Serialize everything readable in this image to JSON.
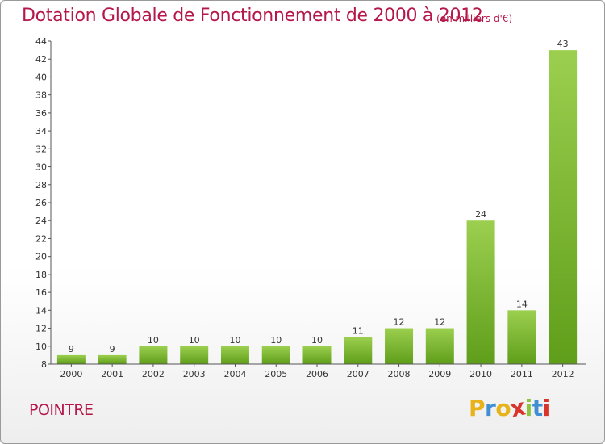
{
  "header": {
    "title": "Dotation Globale de Fonctionnement de 2000 à 2012",
    "unit": "(en milliers d'€)"
  },
  "footer": {
    "commune": "POINTRE",
    "logo_letters": [
      "P",
      "r",
      "o",
      "x",
      "i",
      "t",
      "i"
    ],
    "logo_colors": [
      "#e8b21a",
      "#3f8fd2",
      "#e8b21a",
      "#d9342b",
      "#8bc43f",
      "#3f8fd2",
      "#d9342b"
    ]
  },
  "chart_data": {
    "type": "bar",
    "title": "Dotation Globale de Fonctionnement de 2000 à 2012",
    "xlabel": "",
    "ylabel": "",
    "categories": [
      "2000",
      "2001",
      "2002",
      "2003",
      "2004",
      "2005",
      "2006",
      "2007",
      "2008",
      "2009",
      "2010",
      "2011",
      "2012"
    ],
    "values": [
      9,
      9,
      10,
      10,
      10,
      10,
      10,
      11,
      12,
      12,
      24,
      14,
      43
    ],
    "ylim": [
      8,
      44
    ],
    "yticks": [
      8,
      10,
      12,
      14,
      16,
      18,
      20,
      22,
      24,
      26,
      28,
      30,
      32,
      34,
      36,
      38,
      40,
      42,
      44
    ],
    "grid": false,
    "bar_color_top": "#9ccf4f",
    "bar_color_bottom": "#5f9e1a"
  }
}
